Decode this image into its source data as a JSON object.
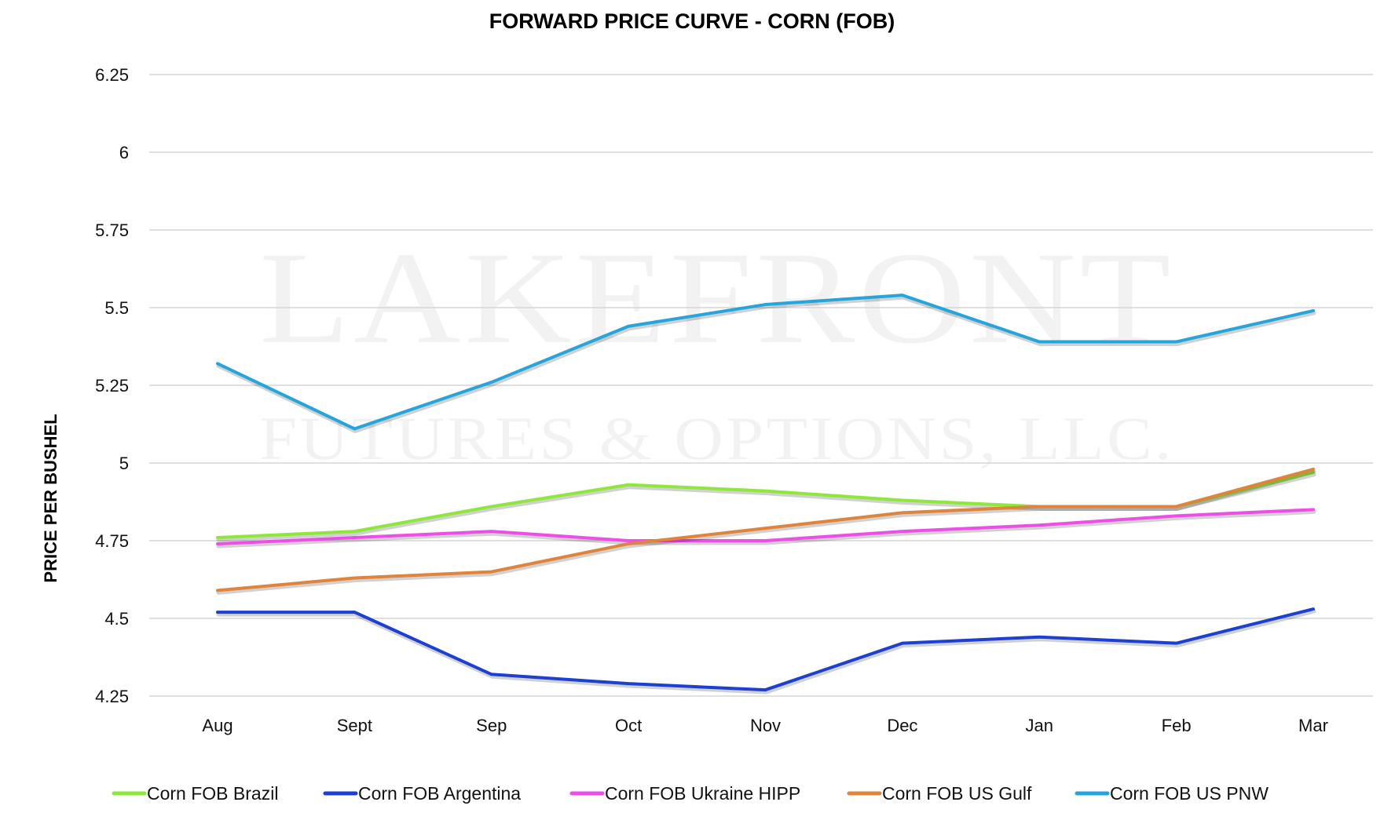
{
  "chart_data": {
    "type": "line",
    "title": "FORWARD PRICE CURVE - CORN (FOB)",
    "xlabel": "",
    "ylabel": "PRICE PER BUSHEL",
    "categories": [
      "Aug",
      "Sept",
      "Sep",
      "Oct",
      "Nov",
      "Dec",
      "Jan",
      "Feb",
      "Mar"
    ],
    "ylim": [
      4.25,
      6.25
    ],
    "yticks": [
      "6.25",
      "6",
      "5.75",
      "5.5",
      "5.25",
      "5",
      "4.75",
      "4.5",
      "4.25"
    ],
    "ytick_values": [
      6.25,
      6,
      5.75,
      5.5,
      5.25,
      5,
      4.75,
      4.5,
      4.25
    ],
    "grid": true,
    "legend_position": "bottom",
    "series": [
      {
        "name": "Corn FOB Brazil",
        "color": "#8ee83a",
        "values": [
          4.76,
          4.78,
          4.86,
          4.93,
          4.91,
          4.88,
          4.86,
          4.86,
          4.97
        ]
      },
      {
        "name": "Corn FOB Argentina",
        "color": "#1c3fd4",
        "values": [
          4.52,
          4.52,
          4.32,
          4.29,
          4.27,
          4.42,
          4.44,
          4.42,
          4.53
        ]
      },
      {
        "name": "Corn FOB Ukraine HIPP",
        "color": "#ee4de8",
        "values": [
          4.74,
          4.76,
          4.78,
          4.75,
          4.75,
          4.78,
          4.8,
          4.83,
          4.85
        ]
      },
      {
        "name": "Corn FOB US Gulf",
        "color": "#e0843c",
        "values": [
          4.59,
          4.63,
          4.65,
          4.74,
          4.79,
          4.84,
          4.86,
          4.86,
          4.98
        ]
      },
      {
        "name": "Corn FOB US PNW",
        "color": "#24a6dc",
        "values": [
          5.32,
          5.11,
          5.26,
          5.44,
          5.51,
          5.54,
          5.39,
          5.39,
          5.49
        ]
      }
    ]
  },
  "watermark": {
    "line1": "LAKEFRONT",
    "line2": "FUTURES & OPTIONS, LLC."
  }
}
